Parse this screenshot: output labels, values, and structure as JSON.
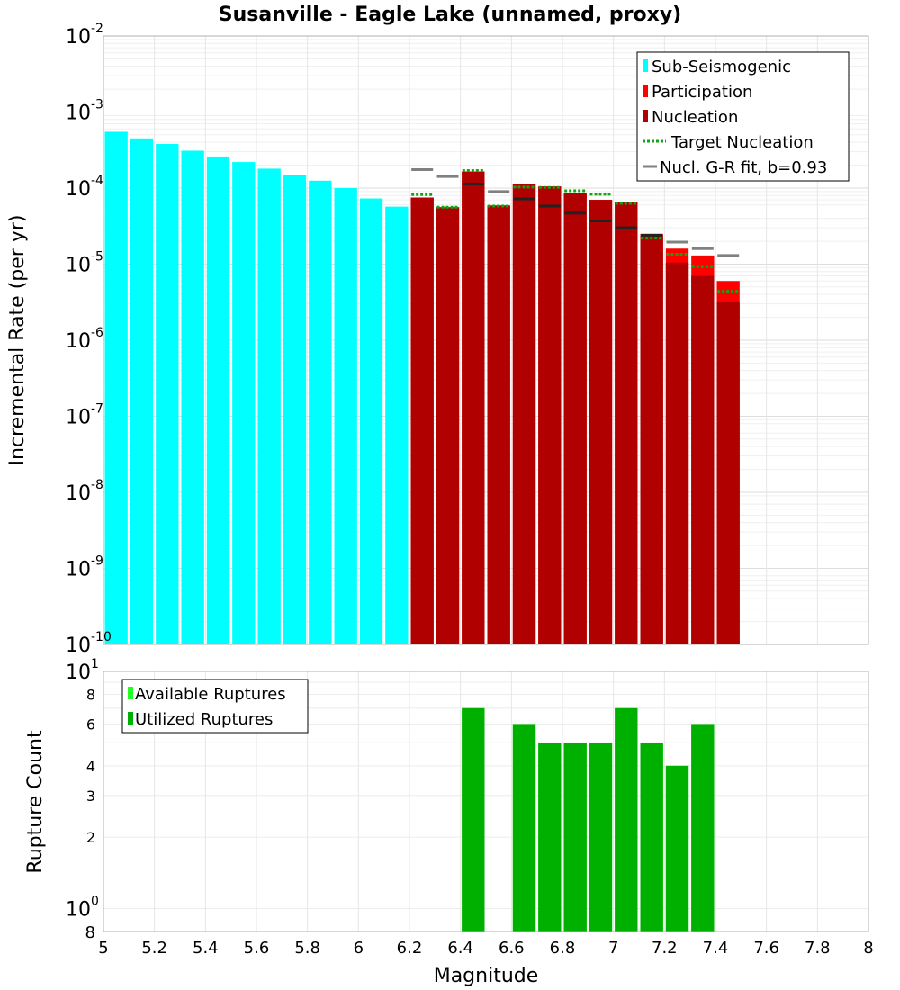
{
  "colors": {
    "sub_seismogenic": "#00ffff",
    "participation": "#ff0000",
    "nucleation": "#b00000",
    "target_nucleation": "#11a611",
    "gr_fit": "#808080",
    "gr_fit_dark": "#222222",
    "available": "#22ff22",
    "utilized": "#00b000"
  },
  "chart_data": [
    {
      "type": "bar",
      "title": "Susanville - Eagle Lake (unnamed, proxy)",
      "xlabel": "",
      "ylabel": "Incremental Rate (per yr)",
      "y_scale": "log",
      "xlim": [
        5,
        8
      ],
      "ylim": [
        1e-10,
        0.01
      ],
      "y_ticks": [
        {
          "base": "10",
          "exp": "-2",
          "value": 0.01
        },
        {
          "base": "10",
          "exp": "-3",
          "value": 0.001
        },
        {
          "base": "10",
          "exp": "-4",
          "value": 0.0001
        },
        {
          "base": "10",
          "exp": "-5",
          "value": 1e-05
        },
        {
          "base": "10",
          "exp": "-6",
          "value": 1e-06
        },
        {
          "base": "10",
          "exp": "-7",
          "value": 1e-07
        },
        {
          "base": "10",
          "exp": "-8",
          "value": 1e-08
        },
        {
          "base": "10",
          "exp": "-9",
          "value": 1e-09
        },
        {
          "base": "10",
          "exp": "-10",
          "value": 1e-10
        }
      ],
      "legend": {
        "position": "top-right",
        "entries": [
          "Sub-Seismogenic",
          "Participation",
          "Nucleation",
          "Target Nucleation",
          "Nucl. G-R fit, b=0.93"
        ]
      },
      "sub_seismogenic": {
        "x": [
          5.05,
          5.15,
          5.25,
          5.35,
          5.45,
          5.55,
          5.65,
          5.75,
          5.85,
          5.95,
          6.05,
          6.15
        ],
        "values": [
          0.00055,
          0.00045,
          0.00038,
          0.00031,
          0.00026,
          0.00022,
          0.00018,
          0.00015,
          0.000125,
          0.0001,
          7.3e-05,
          5.7e-05
        ]
      },
      "participation": {
        "x": [
          6.25,
          6.35,
          6.45,
          6.55,
          6.65,
          6.75,
          6.85,
          6.95,
          7.05,
          7.15,
          7.25,
          7.35,
          7.45
        ],
        "values": [
          7.5e-05,
          5.6e-05,
          0.000165,
          5.9e-05,
          0.000112,
          0.000105,
          8.5e-05,
          7e-05,
          6.5e-05,
          2.5e-05,
          1.6e-05,
          1.3e-05,
          6e-06
        ]
      },
      "nucleation": {
        "x": [
          6.25,
          6.35,
          6.45,
          6.55,
          6.65,
          6.75,
          6.85,
          6.95,
          7.05,
          7.15,
          7.25,
          7.35,
          7.45
        ],
        "values": [
          7.5e-05,
          5.6e-05,
          0.000165,
          5.9e-05,
          0.000112,
          0.000105,
          8.5e-05,
          7e-05,
          6.5e-05,
          2.4e-05,
          1.05e-05,
          7e-06,
          3.2e-06
        ]
      },
      "target_nucleation": {
        "x": [
          6.25,
          6.35,
          6.45,
          6.55,
          6.65,
          6.75,
          6.85,
          6.95,
          7.05,
          7.15,
          7.25,
          7.35,
          7.45
        ],
        "values": [
          8.2e-05,
          5.6e-05,
          0.00017,
          5.8e-05,
          0.000103,
          0.000102,
          9.2e-05,
          8.3e-05,
          6.3e-05,
          2.2e-05,
          1.35e-05,
          9.3e-06,
          4.4e-06
        ]
      },
      "gr_fit": {
        "x": [
          6.25,
          6.35,
          6.45,
          6.55,
          6.65,
          6.75,
          6.85,
          6.95,
          7.05,
          7.15,
          7.25,
          7.35,
          7.45
        ],
        "values": [
          0.000175,
          0.000142,
          0.000113,
          9e-05,
          7.2e-05,
          5.8e-05,
          4.7e-05,
          3.7e-05,
          3e-05,
          2.4e-05,
          1.95e-05,
          1.6e-05,
          1.3e-05
        ]
      }
    },
    {
      "type": "bar",
      "title": "",
      "xlabel": "Magnitude",
      "ylabel": "Rupture Count",
      "y_scale": "log",
      "xlim": [
        5,
        8
      ],
      "ylim": [
        0.8,
        10
      ],
      "x_tick_labels": [
        "5",
        "5.2",
        "5.4",
        "5.6",
        "5.8",
        "6",
        "6.2",
        "6.4",
        "6.6",
        "6.8",
        "7",
        "7.2",
        "7.4",
        "7.6",
        "7.8",
        "8"
      ],
      "y_minor_ticks": [
        "8",
        "6",
        "4",
        "3",
        "2",
        "8"
      ],
      "y_minor_values": [
        8,
        6,
        4,
        3,
        2,
        0.8
      ],
      "y_major_ticks": [
        {
          "base": "10",
          "exp": "1",
          "value": 10
        },
        {
          "base": "10",
          "exp": "0",
          "value": 1
        }
      ],
      "legend": {
        "position": "top-left",
        "entries": [
          "Available Ruptures",
          "Utilized Ruptures"
        ]
      },
      "available": {
        "x": [
          6.45,
          6.65,
          6.75,
          6.85,
          6.95,
          7.05,
          7.15,
          7.25,
          7.35
        ],
        "values": [
          7,
          6,
          5,
          5,
          5,
          7,
          5,
          4,
          6
        ]
      },
      "utilized": {
        "x": [
          6.45,
          6.65,
          6.75,
          6.85,
          6.95,
          7.05,
          7.15,
          7.25,
          7.35
        ],
        "values": [
          7,
          6,
          5,
          5,
          5,
          7,
          5,
          4,
          6
        ]
      }
    }
  ]
}
